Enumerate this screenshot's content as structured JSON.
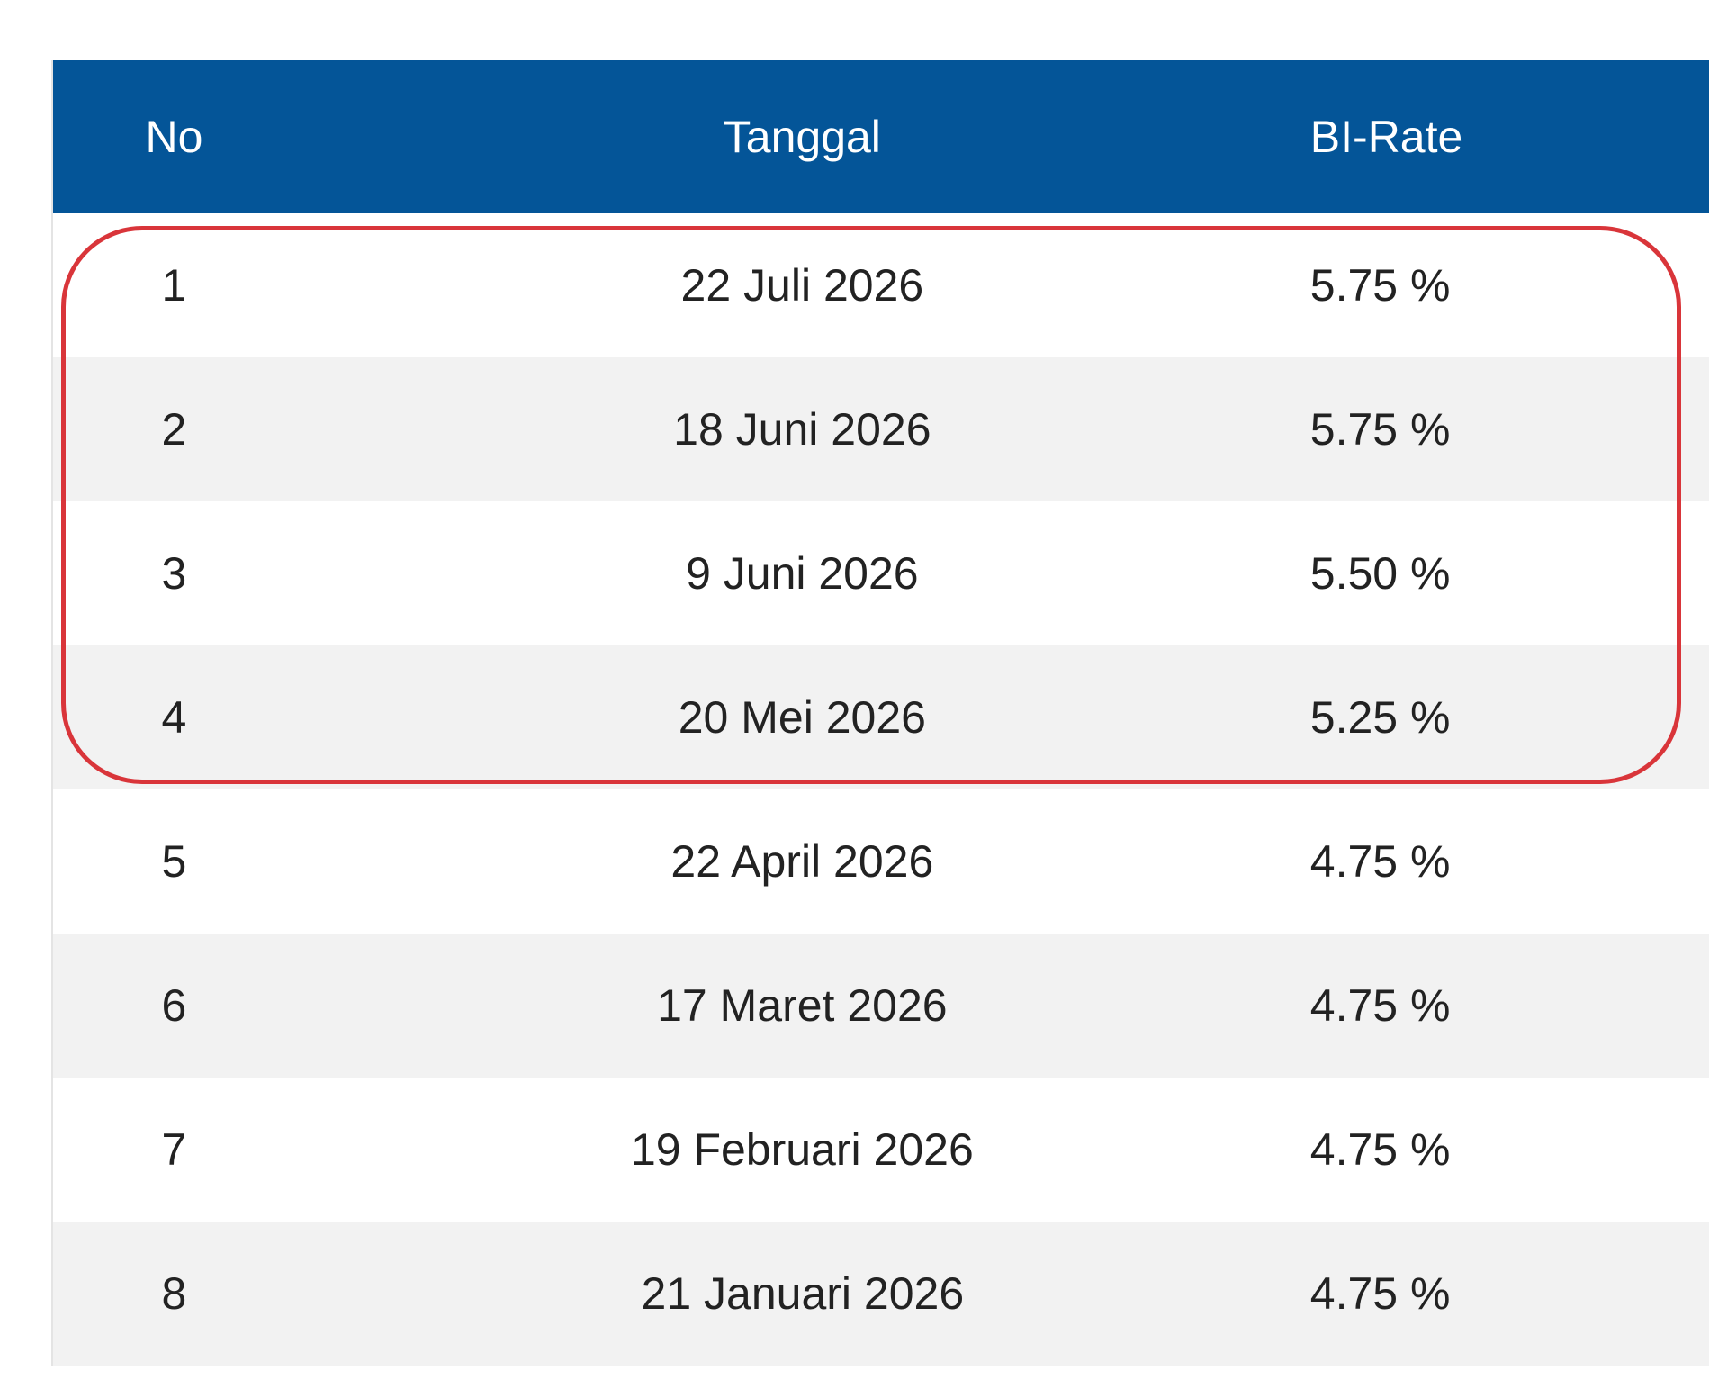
{
  "table": {
    "header": [
      "No",
      "Tanggal",
      "BI-Rate"
    ],
    "rows": [
      [
        "1",
        "22 Juli 2026",
        "5.75 %"
      ],
      [
        "2",
        "18 Juni 2026",
        "5.75 %"
      ],
      [
        "3",
        "9 Juni 2026",
        "5.50 %"
      ],
      [
        "4",
        "20 Mei 2026",
        "5.25 %"
      ],
      [
        "5",
        "22 April 2026",
        "4.75 %"
      ],
      [
        "6",
        "17 Maret 2026",
        "4.75 %"
      ],
      [
        "7",
        "19 Februari 2026",
        "4.75 %"
      ],
      [
        "8",
        "21 Januari 2026",
        "4.75 %"
      ]
    ]
  }
}
